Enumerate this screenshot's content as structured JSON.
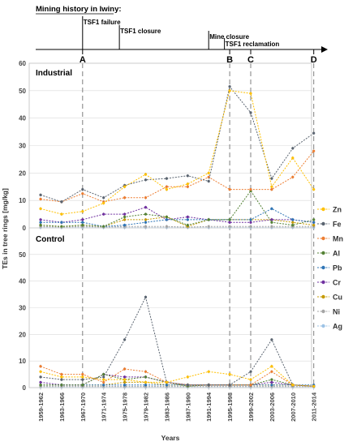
{
  "chart_data": {
    "type": "line",
    "history": {
      "title": "Mining history in Iwiny:",
      "events": [
        {
          "label": "TSF1 failure",
          "year": 1967
        },
        {
          "label": "TSF1 closure",
          "year": 1974
        },
        {
          "label": "Mine closure",
          "year": 1991
        },
        {
          "label": "TSF1 reclamation",
          "year": 1994
        }
      ]
    },
    "markers": [
      {
        "label": "A",
        "category": "1967-1970"
      },
      {
        "label": "B",
        "category": "1995-1998"
      },
      {
        "label": "C",
        "category": "1999-2002"
      },
      {
        "label": "D",
        "category": "2011-2014"
      }
    ],
    "categories": [
      "1959-1962",
      "1963-1966",
      "1967-1970",
      "1971-1974",
      "1975-1978",
      "1979-1982",
      "1983-1986",
      "1987-1990",
      "1991-1994",
      "1995-1998",
      "1999-2002",
      "2003-2006",
      "2007-2010",
      "2011-2014"
    ],
    "ylabel": "TEs in tree rings [mg/kg]",
    "xlabel": "Years",
    "ylim": [
      0,
      60
    ],
    "yticks": [
      "0",
      "10",
      "20",
      "30",
      "40",
      "50",
      "60"
    ],
    "grid": true,
    "legend_position": "right",
    "panels": [
      {
        "label": "Industrial",
        "series": [
          {
            "name": "Zn",
            "color": "#ffc000",
            "values": [
              7,
              5,
              6,
              9,
              15,
              19.5,
              14,
              16,
              20,
              50,
              49,
              15,
              25.5,
              14
            ]
          },
          {
            "name": "Fe",
            "color": "#5a6470",
            "values": [
              12,
              9.5,
              14,
              11,
              15.5,
              17.5,
              18,
              19,
              17,
              51.5,
              42,
              18,
              29,
              34.5
            ]
          },
          {
            "name": "Mn",
            "color": "#ed7d31",
            "values": [
              10.5,
              9.5,
              12.5,
              9.5,
              11,
              11,
              15,
              15,
              18.5,
              14,
              14,
              14,
              18.5,
              28
            ]
          },
          {
            "name": "Al",
            "color": "#548235",
            "values": [
              1,
              0.5,
              1,
              0.5,
              4,
              5,
              4,
              1,
              3,
              3,
              13.5,
              2,
              1,
              3
            ]
          },
          {
            "name": "Pb",
            "color": "#2e75b6",
            "values": [
              2,
              2,
              2,
              0.5,
              1,
              2,
              3,
              3,
              3,
              3,
              3,
              7,
              3,
              2
            ]
          },
          {
            "name": "Cr",
            "color": "#7030a0",
            "values": [
              3,
              2,
              3,
              5,
              5,
              7.5,
              3,
              4,
              3,
              2,
              2,
              3,
              3,
              2
            ]
          },
          {
            "name": "Cu",
            "color": "#c59a00",
            "values": [
              1,
              0.5,
              1,
              0.5,
              3,
              3,
              4,
              0.5,
              3,
              3,
              3,
              3,
              2,
              1
            ]
          },
          {
            "name": "Ni",
            "color": "#a5a5a5",
            "values": [
              0.5,
              0.3,
              0.5,
              0.3,
              0.5,
              0.5,
              0.5,
              0.3,
              0.5,
              0.5,
              0.5,
              0.5,
              0.5,
              0.5
            ]
          },
          {
            "name": "Ag",
            "color": "#9dc3e6",
            "values": [
              0.1,
              0.1,
              0.1,
              0.1,
              0.1,
              0.1,
              0.1,
              0.1,
              0.1,
              0.1,
              0.1,
              0.1,
              0.1,
              0.1
            ]
          }
        ]
      },
      {
        "label": "Control",
        "series": [
          {
            "name": "Zn",
            "color": "#ffc000",
            "values": [
              6,
              4,
              4,
              3,
              3,
              2,
              2,
              4,
              6,
              5,
              3,
              8,
              1,
              0.5
            ]
          },
          {
            "name": "Fe",
            "color": "#5a6470",
            "values": [
              4,
              3,
              3,
              4,
              18,
              34,
              2,
              1,
              1,
              1,
              6,
              18,
              1,
              0.5
            ]
          },
          {
            "name": "Mn",
            "color": "#ed7d31",
            "values": [
              8,
              5,
              5,
              2,
              7,
              6,
              2,
              1,
              1,
              1,
              1,
              6,
              1,
              0.5
            ]
          },
          {
            "name": "Al",
            "color": "#548235",
            "values": [
              1,
              1,
              1,
              5,
              3,
              4,
              2,
              0.5,
              1,
              1,
              1,
              3,
              1,
              0.5
            ]
          },
          {
            "name": "Pb",
            "color": "#2e75b6",
            "values": [
              1,
              1,
              1,
              1,
              1,
              1,
              1,
              1,
              1,
              1,
              1,
              1,
              1,
              1
            ]
          },
          {
            "name": "Cr",
            "color": "#7030a0",
            "values": [
              2,
              1,
              1,
              5,
              4,
              4,
              2,
              1,
              1,
              1,
              1,
              2,
              1,
              0.5
            ]
          },
          {
            "name": "Cu",
            "color": "#c59a00",
            "values": [
              1,
              1,
              1,
              1,
              2,
              2,
              1,
              1,
              1,
              1,
              1,
              1,
              1,
              0.5
            ]
          },
          {
            "name": "Ni",
            "color": "#a5a5a5",
            "values": [
              0.5,
              0.5,
              0.5,
              0.5,
              0.5,
              0.5,
              0.5,
              0.5,
              0.5,
              0.5,
              0.5,
              0.5,
              0.5,
              0.5
            ]
          },
          {
            "name": "Ag",
            "color": "#9dc3e6",
            "values": [
              0.1,
              0.1,
              0.1,
              0.1,
              0.1,
              0.1,
              0.1,
              0.1,
              0.1,
              0.1,
              0.1,
              0.1,
              0.1,
              0.1
            ]
          }
        ]
      }
    ]
  }
}
